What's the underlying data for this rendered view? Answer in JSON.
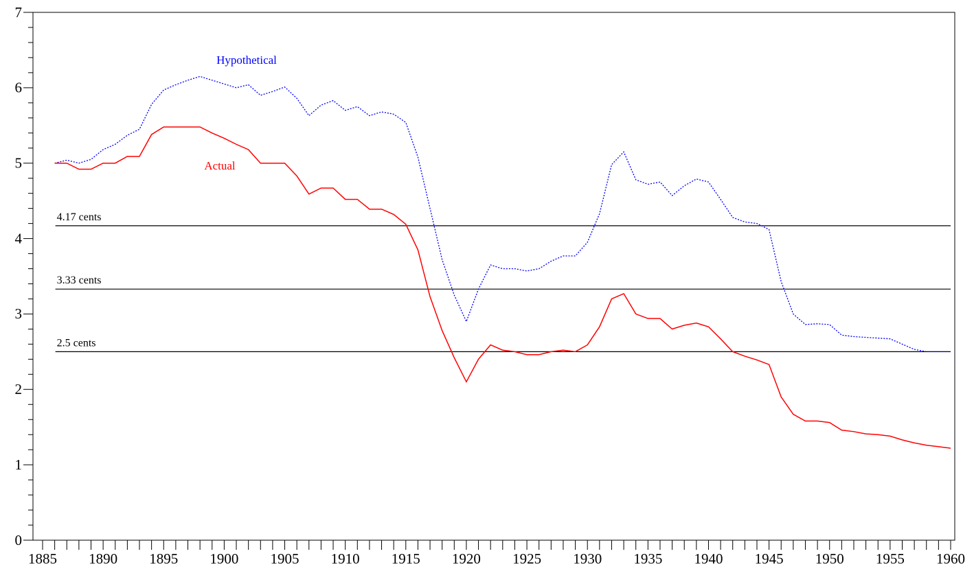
{
  "chart_data": {
    "type": "line",
    "x": [
      1886,
      1887,
      1888,
      1889,
      1890,
      1891,
      1892,
      1893,
      1894,
      1895,
      1896,
      1897,
      1898,
      1899,
      1900,
      1901,
      1902,
      1903,
      1904,
      1905,
      1906,
      1907,
      1908,
      1909,
      1910,
      1911,
      1912,
      1913,
      1914,
      1915,
      1916,
      1917,
      1918,
      1919,
      1920,
      1921,
      1922,
      1923,
      1924,
      1925,
      1926,
      1927,
      1928,
      1929,
      1930,
      1931,
      1932,
      1933,
      1934,
      1935,
      1936,
      1937,
      1938,
      1939,
      1940,
      1941,
      1942,
      1943,
      1944,
      1945,
      1946,
      1947,
      1948,
      1949,
      1950,
      1951,
      1952,
      1953,
      1954,
      1955,
      1956,
      1957,
      1958,
      1959,
      1960
    ],
    "series": [
      {
        "name": "Hypothetical",
        "color": "#0000ff",
        "dashed": true,
        "values": [
          5.0,
          5.04,
          5.0,
          5.05,
          5.18,
          5.25,
          5.37,
          5.45,
          5.78,
          5.97,
          6.04,
          6.1,
          6.15,
          6.1,
          6.05,
          6.0,
          6.04,
          5.9,
          5.95,
          6.01,
          5.86,
          5.63,
          5.77,
          5.83,
          5.7,
          5.75,
          5.63,
          5.68,
          5.65,
          5.54,
          5.08,
          4.4,
          3.72,
          3.25,
          2.9,
          3.33,
          3.65,
          3.6,
          3.6,
          3.57,
          3.6,
          3.7,
          3.77,
          3.77,
          3.95,
          4.33,
          4.98,
          5.15,
          4.78,
          4.72,
          4.75,
          4.57,
          4.7,
          4.79,
          4.75,
          4.52,
          4.28,
          4.22,
          4.2,
          4.12,
          3.43,
          3.0,
          2.86,
          2.87,
          2.86,
          2.72,
          2.7,
          2.69,
          2.68,
          2.67,
          2.6,
          2.53,
          2.5,
          2.5,
          2.5
        ]
      },
      {
        "name": "Actual",
        "color": "#ff0000",
        "dashed": false,
        "values": [
          5.0,
          5.0,
          4.92,
          4.92,
          5.0,
          5.0,
          5.09,
          5.09,
          5.38,
          5.48,
          5.48,
          5.48,
          5.48,
          5.4,
          5.33,
          5.25,
          5.18,
          5.0,
          5.0,
          5.0,
          4.83,
          4.59,
          4.67,
          4.67,
          4.52,
          4.52,
          4.39,
          4.39,
          4.32,
          4.19,
          3.85,
          3.23,
          2.78,
          2.42,
          2.1,
          2.4,
          2.59,
          2.52,
          2.5,
          2.46,
          2.46,
          2.5,
          2.52,
          2.5,
          2.59,
          2.83,
          3.2,
          3.27,
          3.0,
          2.94,
          2.94,
          2.8,
          2.85,
          2.88,
          2.83,
          2.67,
          2.5,
          2.44,
          2.39,
          2.33,
          1.9,
          1.67,
          1.58,
          1.58,
          1.56,
          1.46,
          1.44,
          1.41,
          1.4,
          1.38,
          1.33,
          1.29,
          1.26,
          1.24,
          1.22
        ]
      }
    ],
    "reference_lines": [
      {
        "value": 4.17,
        "label": "4.17 cents"
      },
      {
        "value": 3.33,
        "label": "3.33 cents"
      },
      {
        "value": 2.5,
        "label": "2.5 cents"
      }
    ],
    "xlim": [
      1885,
      1960
    ],
    "xticks": [
      1885,
      1890,
      1895,
      1900,
      1905,
      1910,
      1915,
      1920,
      1925,
      1930,
      1935,
      1940,
      1945,
      1950,
      1955,
      1960
    ],
    "xminorticks": [
      1886,
      1887,
      1888,
      1889,
      1891,
      1892,
      1893,
      1894,
      1896,
      1897,
      1898,
      1899,
      1901,
      1902,
      1903,
      1904,
      1906,
      1907,
      1908,
      1909,
      1911,
      1912,
      1913,
      1914,
      1916,
      1917,
      1918,
      1919,
      1921,
      1922,
      1923,
      1924,
      1926,
      1927,
      1928,
      1929,
      1931,
      1932,
      1933,
      1934,
      1936,
      1937,
      1938,
      1939,
      1941,
      1942,
      1943,
      1944,
      1946,
      1947,
      1948,
      1949,
      1951,
      1952,
      1953,
      1954,
      1956,
      1957,
      1958,
      1959
    ],
    "ylim": [
      0,
      7
    ],
    "yticks": [
      0,
      1,
      2,
      3,
      4,
      5,
      6,
      7
    ],
    "yminorticks": [
      0.2,
      0.4,
      0.6,
      0.8,
      1.2,
      1.4,
      1.6,
      1.8,
      2.2,
      2.4,
      2.6,
      2.8,
      3.2,
      3.4,
      3.6,
      3.8,
      4.2,
      4.4,
      4.6,
      4.8,
      5.2,
      5.4,
      5.6,
      5.8,
      6.2,
      6.4,
      6.6,
      6.8
    ],
    "grid": false
  }
}
